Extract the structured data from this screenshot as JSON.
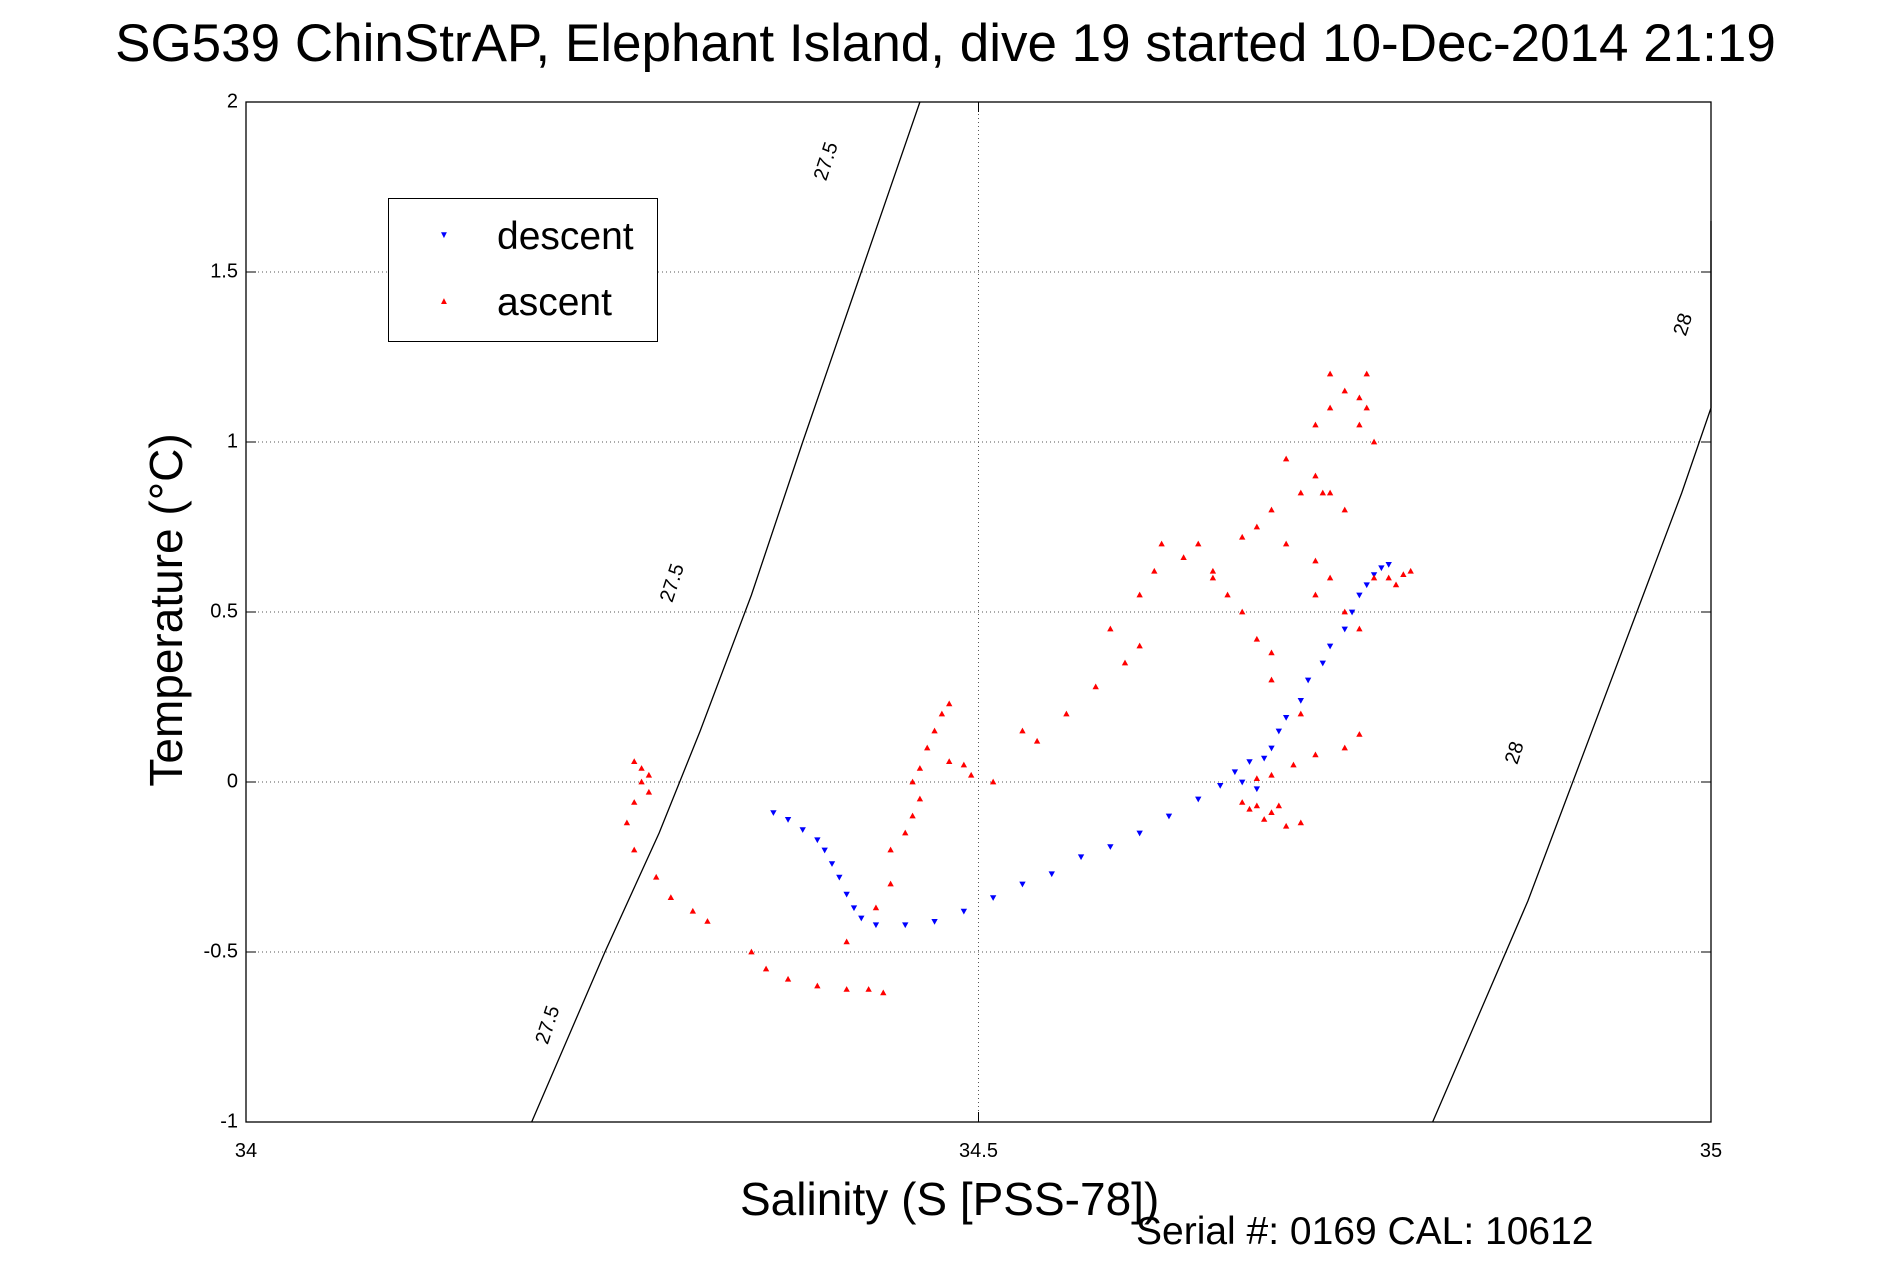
{
  "chart_data": {
    "type": "scatter",
    "title": "SG539 ChinStrAP, Elephant Island, dive 19 started 10-Dec-2014 21:19",
    "xlabel": "Salinity (S [PSS-78])",
    "ylabel": "Temperature (°C)",
    "xlim": [
      34,
      35
    ],
    "ylim": [
      -1,
      2
    ],
    "x_ticks": [
      "34",
      "34.5",
      "35"
    ],
    "y_ticks": [
      "-1",
      "-0.5",
      "0",
      "0.5",
      "1",
      "1.5",
      "2"
    ],
    "grid": true,
    "legend_position": "top-left",
    "annotation": "Serial #: 0169 CAL: 10612",
    "series": [
      {
        "name": "descent",
        "color": "#0000ff",
        "marker": "triangle-down",
        "points": [
          [
            34.36,
            -0.09
          ],
          [
            34.37,
            -0.11
          ],
          [
            34.38,
            -0.14
          ],
          [
            34.39,
            -0.17
          ],
          [
            34.395,
            -0.2
          ],
          [
            34.4,
            -0.24
          ],
          [
            34.405,
            -0.28
          ],
          [
            34.41,
            -0.33
          ],
          [
            34.415,
            -0.37
          ],
          [
            34.42,
            -0.4
          ],
          [
            34.43,
            -0.42
          ],
          [
            34.45,
            -0.42
          ],
          [
            34.47,
            -0.41
          ],
          [
            34.49,
            -0.38
          ],
          [
            34.51,
            -0.34
          ],
          [
            34.53,
            -0.3
          ],
          [
            34.55,
            -0.27
          ],
          [
            34.57,
            -0.22
          ],
          [
            34.59,
            -0.19
          ],
          [
            34.61,
            -0.15
          ],
          [
            34.63,
            -0.1
          ],
          [
            34.65,
            -0.05
          ],
          [
            34.665,
            -0.01
          ],
          [
            34.675,
            0.03
          ],
          [
            34.68,
            0.0
          ],
          [
            34.685,
            0.06
          ],
          [
            34.69,
            -0.02
          ],
          [
            34.695,
            0.07
          ],
          [
            34.7,
            0.1
          ],
          [
            34.705,
            0.15
          ],
          [
            34.71,
            0.19
          ],
          [
            34.72,
            0.24
          ],
          [
            34.725,
            0.3
          ],
          [
            34.735,
            0.35
          ],
          [
            34.74,
            0.4
          ],
          [
            34.75,
            0.45
          ],
          [
            34.755,
            0.5
          ],
          [
            34.76,
            0.55
          ],
          [
            34.765,
            0.58
          ],
          [
            34.77,
            0.61
          ],
          [
            34.775,
            0.63
          ],
          [
            34.78,
            0.64
          ]
        ]
      },
      {
        "name": "ascent",
        "color": "#ff0000",
        "marker": "triangle-up",
        "points": [
          [
            34.265,
            0.06
          ],
          [
            34.27,
            0.04
          ],
          [
            34.275,
            0.02
          ],
          [
            34.27,
            0.0
          ],
          [
            34.275,
            -0.03
          ],
          [
            34.265,
            -0.06
          ],
          [
            34.26,
            -0.12
          ],
          [
            34.265,
            -0.2
          ],
          [
            34.28,
            -0.28
          ],
          [
            34.29,
            -0.34
          ],
          [
            34.305,
            -0.38
          ],
          [
            34.315,
            -0.41
          ],
          [
            34.345,
            -0.5
          ],
          [
            34.355,
            -0.55
          ],
          [
            34.37,
            -0.58
          ],
          [
            34.39,
            -0.6
          ],
          [
            34.41,
            -0.61
          ],
          [
            34.425,
            -0.61
          ],
          [
            34.435,
            -0.62
          ],
          [
            34.41,
            -0.47
          ],
          [
            34.43,
            -0.37
          ],
          [
            34.44,
            -0.3
          ],
          [
            34.44,
            -0.2
          ],
          [
            34.45,
            -0.15
          ],
          [
            34.455,
            -0.1
          ],
          [
            34.46,
            -0.05
          ],
          [
            34.455,
            0.0
          ],
          [
            34.46,
            0.04
          ],
          [
            34.465,
            0.1
          ],
          [
            34.47,
            0.15
          ],
          [
            34.475,
            0.2
          ],
          [
            34.48,
            0.23
          ],
          [
            34.48,
            0.06
          ],
          [
            34.49,
            0.05
          ],
          [
            34.495,
            0.02
          ],
          [
            34.51,
            0.0
          ],
          [
            34.53,
            0.15
          ],
          [
            34.54,
            0.12
          ],
          [
            34.56,
            0.2
          ],
          [
            34.58,
            0.28
          ],
          [
            34.6,
            0.35
          ],
          [
            34.61,
            0.4
          ],
          [
            34.59,
            0.45
          ],
          [
            34.61,
            0.55
          ],
          [
            34.62,
            0.62
          ],
          [
            34.625,
            0.7
          ],
          [
            34.64,
            0.66
          ],
          [
            34.66,
            0.6
          ],
          [
            34.67,
            0.55
          ],
          [
            34.68,
            0.5
          ],
          [
            34.69,
            0.42
          ],
          [
            34.7,
            0.38
          ],
          [
            34.69,
            0.75
          ],
          [
            34.7,
            0.8
          ],
          [
            34.72,
            0.85
          ],
          [
            34.73,
            0.9
          ],
          [
            34.74,
            0.85
          ],
          [
            34.75,
            0.8
          ],
          [
            34.71,
            0.95
          ],
          [
            34.73,
            1.05
          ],
          [
            34.74,
            1.1
          ],
          [
            34.76,
            1.05
          ],
          [
            34.765,
            1.1
          ],
          [
            34.77,
            1.0
          ],
          [
            34.75,
            1.15
          ],
          [
            34.74,
            1.2
          ],
          [
            34.765,
            1.2
          ],
          [
            34.76,
            1.13
          ],
          [
            34.735,
            0.85
          ],
          [
            34.71,
            0.7
          ],
          [
            34.73,
            0.55
          ],
          [
            34.75,
            0.5
          ],
          [
            34.76,
            0.45
          ],
          [
            34.77,
            0.6
          ],
          [
            34.78,
            0.6
          ],
          [
            34.79,
            0.61
          ],
          [
            34.795,
            0.62
          ],
          [
            34.785,
            0.58
          ],
          [
            34.68,
            -0.06
          ],
          [
            34.685,
            -0.08
          ],
          [
            34.69,
            -0.07
          ],
          [
            34.7,
            -0.09
          ],
          [
            34.695,
            -0.11
          ],
          [
            34.705,
            -0.07
          ],
          [
            34.71,
            -0.13
          ],
          [
            34.72,
            -0.12
          ],
          [
            34.69,
            0.01
          ],
          [
            34.7,
            0.02
          ],
          [
            34.715,
            0.05
          ],
          [
            34.73,
            0.08
          ],
          [
            34.75,
            0.1
          ],
          [
            34.76,
            0.14
          ],
          [
            34.72,
            0.2
          ],
          [
            34.7,
            0.3
          ],
          [
            34.74,
            0.6
          ],
          [
            34.73,
            0.65
          ],
          [
            34.68,
            0.72
          ],
          [
            34.65,
            0.7
          ],
          [
            34.66,
            0.62
          ]
        ]
      }
    ],
    "isopycnals": [
      {
        "label": "27.5",
        "points": [
          [
            34.195,
            -1.0
          ],
          [
            34.215,
            -0.8
          ],
          [
            34.245,
            -0.5
          ],
          [
            34.282,
            -0.15
          ],
          [
            34.31,
            0.15
          ],
          [
            34.345,
            0.55
          ],
          [
            34.38,
            1.0
          ],
          [
            34.42,
            1.5
          ],
          [
            34.46,
            2.0
          ]
        ]
      },
      {
        "label": "28",
        "points": [
          [
            34.81,
            -1.0
          ],
          [
            34.84,
            -0.7
          ],
          [
            34.875,
            -0.35
          ],
          [
            34.91,
            0.05
          ],
          [
            34.945,
            0.45
          ],
          [
            34.98,
            0.85
          ],
          [
            35.0,
            1.1
          ],
          [
            35.0,
            1.65
          ]
        ]
      }
    ]
  }
}
